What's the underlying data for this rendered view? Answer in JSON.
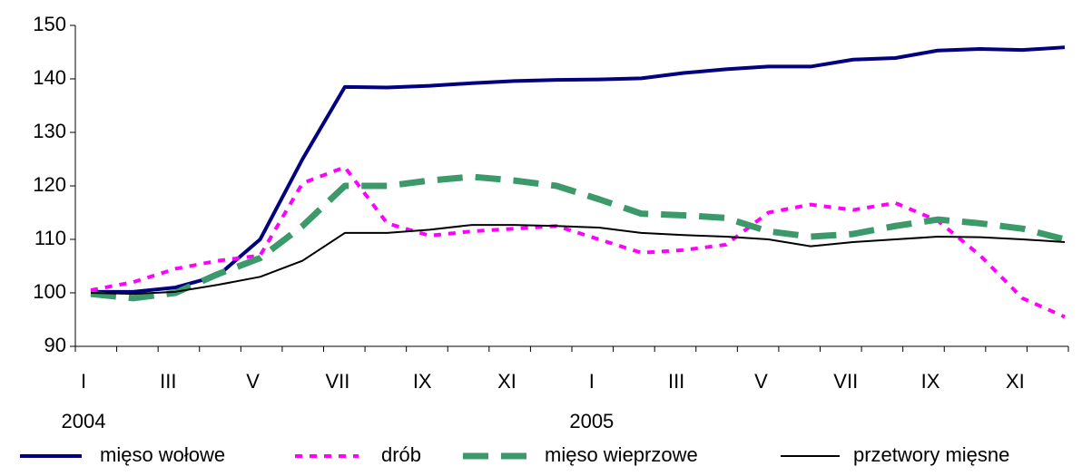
{
  "chart_data": {
    "type": "line",
    "categories": [
      "I",
      null,
      "III",
      null,
      "V",
      null,
      "VII",
      null,
      "IX",
      null,
      "XI",
      null,
      "I",
      null,
      "III",
      null,
      "V",
      null,
      "VII",
      null,
      "IX",
      null,
      "XI",
      null
    ],
    "annotations": [
      "2004",
      "2005"
    ],
    "ylim": [
      90,
      150
    ],
    "yticks": [
      90,
      100,
      110,
      120,
      130,
      140,
      150
    ],
    "grid": false,
    "legend": "bottom",
    "series": [
      {
        "name": "mięso wołowe",
        "color": "#000080",
        "line_style": "solid",
        "values": [
          100.2,
          100.2,
          101,
          103.2,
          110,
          125,
          138.5,
          138.4,
          138.7,
          139.2,
          139.6,
          139.8,
          139.9,
          140.1,
          141.1,
          141.8,
          142.3,
          142.3,
          143.6,
          143.9,
          145.3,
          145.6,
          145.4,
          145.9
        ]
      },
      {
        "name": "drób",
        "color": "#ff00ff",
        "line_style": "dotted",
        "values": [
          100.5,
          102,
          104.5,
          106,
          107,
          120.5,
          123.5,
          113,
          110.7,
          111.5,
          112,
          112.5,
          110,
          107.5,
          108,
          109,
          115,
          116.5,
          115.5,
          116.8,
          113.5,
          107,
          99,
          95.5
        ]
      },
      {
        "name": "mięso wieprzowe",
        "color": "#3c9a6a",
        "line_style": "dashed",
        "values": [
          99.8,
          99,
          100,
          103.5,
          106.5,
          112.5,
          120,
          120,
          121,
          121.7,
          121,
          120,
          117.5,
          114.8,
          114.5,
          114,
          111.5,
          110.5,
          111,
          112.5,
          113.7,
          113,
          112,
          110
        ]
      },
      {
        "name": "przetwory mięsne",
        "color": "#000000",
        "line_style": "thin",
        "values": [
          100,
          99.8,
          100.2,
          101.5,
          103,
          106,
          111.2,
          111.2,
          111.8,
          112.7,
          112.7,
          112.5,
          112.2,
          111.2,
          110.8,
          110.5,
          110,
          108.7,
          109.5,
          110,
          110.5,
          110.4,
          110,
          109.5
        ]
      }
    ]
  }
}
